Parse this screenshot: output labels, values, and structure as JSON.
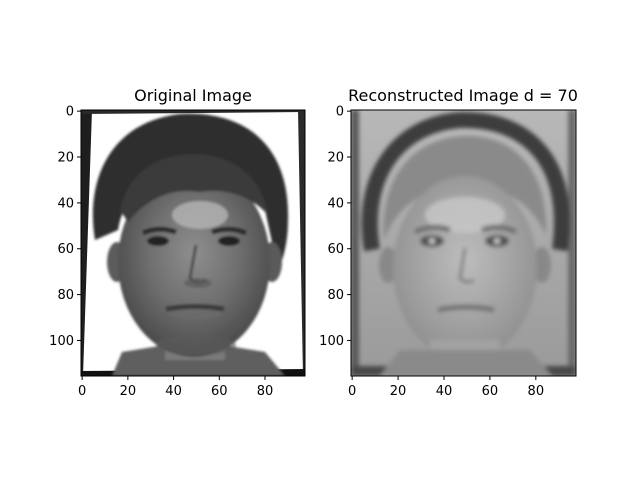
{
  "figure": {
    "panels": [
      {
        "title": "Original Image",
        "x_ticks": [
          "0",
          "20",
          "40",
          "60",
          "80"
        ],
        "y_ticks": [
          "0",
          "20",
          "40",
          "60",
          "80",
          "100"
        ],
        "x_tick_values": [
          0,
          20,
          40,
          60,
          80
        ],
        "y_tick_values": [
          0,
          20,
          40,
          60,
          80,
          100
        ],
        "xlim": [
          -0.5,
          97.5
        ],
        "ylim": [
          115.5,
          -0.5
        ],
        "image_kind": "grayscale face photograph",
        "colormap": "gray"
      },
      {
        "title": "Reconstructed Image d = 70",
        "x_ticks": [
          "0",
          "20",
          "40",
          "60",
          "80"
        ],
        "y_ticks": [
          "0",
          "20",
          "40",
          "60",
          "80",
          "100"
        ],
        "x_tick_values": [
          0,
          20,
          40,
          60,
          80
        ],
        "y_tick_values": [
          0,
          20,
          40,
          60,
          80,
          100
        ],
        "xlim": [
          -0.5,
          97.5
        ],
        "ylim": [
          115.5,
          -0.5
        ],
        "image_kind": "grayscale face reconstruction",
        "colormap": "gray"
      }
    ]
  }
}
